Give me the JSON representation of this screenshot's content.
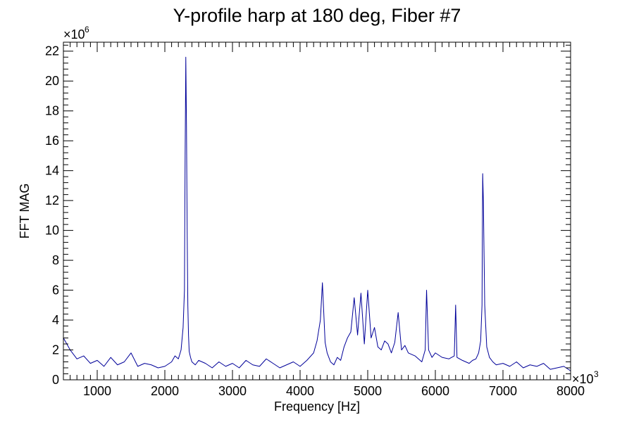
{
  "chart_data": {
    "type": "line",
    "title": "Y-profile harp at 180 deg, Fiber #7",
    "xlabel": "Frequency [Hz]",
    "ylabel": "FFT MAG",
    "x_multiplier": "×10",
    "x_multiplier_exp": "3",
    "y_multiplier": "×10",
    "y_multiplier_exp": "6",
    "xlim": [
      500,
      8000
    ],
    "ylim": [
      0,
      22.6
    ],
    "x_ticks": [
      1000,
      2000,
      3000,
      4000,
      5000,
      6000,
      7000,
      8000
    ],
    "y_ticks": [
      0,
      2,
      4,
      6,
      8,
      10,
      12,
      14,
      16,
      18,
      20,
      22
    ],
    "grid": false,
    "line_color": "#000099",
    "series": [
      {
        "x": [
          500,
          600,
          700,
          800,
          900,
          1000,
          1100,
          1200,
          1300,
          1400,
          1500,
          1600,
          1700,
          1800,
          1900,
          2000,
          2100,
          2150,
          2200,
          2240,
          2270,
          2290,
          2300,
          2310,
          2320,
          2330,
          2340,
          2350,
          2360,
          2380,
          2400,
          2450,
          2500,
          2600,
          2700,
          2800,
          2900,
          3000,
          3100,
          3200,
          3300,
          3400,
          3500,
          3600,
          3700,
          3800,
          3900,
          4000,
          4100,
          4200,
          4250,
          4300,
          4330,
          4350,
          4370,
          4400,
          4450,
          4500,
          4550,
          4600,
          4650,
          4700,
          4750,
          4800,
          4850,
          4900,
          4950,
          5000,
          5050,
          5100,
          5150,
          5200,
          5250,
          5300,
          5350,
          5400,
          5450,
          5500,
          5550,
          5600,
          5700,
          5800,
          5850,
          5870,
          5900,
          5950,
          6000,
          6100,
          6200,
          6280,
          6300,
          6320,
          6400,
          6500,
          6550,
          6600,
          6640,
          6670,
          6690,
          6700,
          6710,
          6730,
          6760,
          6800,
          6850,
          6900,
          7000,
          7100,
          7200,
          7300,
          7400,
          7500,
          7600,
          7700,
          7800,
          7900,
          8000
        ],
        "y": [
          2.8,
          2.0,
          1.4,
          1.6,
          1.1,
          1.3,
          0.9,
          1.5,
          1.0,
          1.2,
          1.8,
          0.9,
          1.1,
          1.0,
          0.8,
          0.9,
          1.2,
          1.6,
          1.4,
          2.0,
          3.5,
          6.0,
          15.0,
          21.6,
          17.0,
          10.0,
          5.0,
          3.0,
          1.9,
          1.5,
          1.2,
          1.0,
          1.3,
          1.1,
          0.8,
          1.2,
          0.9,
          1.1,
          0.8,
          1.3,
          1.0,
          0.9,
          1.4,
          1.1,
          0.8,
          1.0,
          1.2,
          0.9,
          1.3,
          1.8,
          2.6,
          4.0,
          6.5,
          4.5,
          2.5,
          1.8,
          1.2,
          1.0,
          1.5,
          1.3,
          2.2,
          2.8,
          3.2,
          5.5,
          3.0,
          5.8,
          2.4,
          6.0,
          2.8,
          3.5,
          2.2,
          2.0,
          2.6,
          2.4,
          1.8,
          2.5,
          4.5,
          2.0,
          2.3,
          1.8,
          1.6,
          1.2,
          2.0,
          6.0,
          2.0,
          1.5,
          1.8,
          1.5,
          1.4,
          1.6,
          5.0,
          1.5,
          1.3,
          1.1,
          1.3,
          1.4,
          1.8,
          2.6,
          5.0,
          13.8,
          12.0,
          5.0,
          2.2,
          1.5,
          1.2,
          1.0,
          1.1,
          0.9,
          1.2,
          0.8,
          1.0,
          0.9,
          1.1,
          0.7,
          0.8,
          0.9,
          0.6
        ]
      }
    ]
  }
}
